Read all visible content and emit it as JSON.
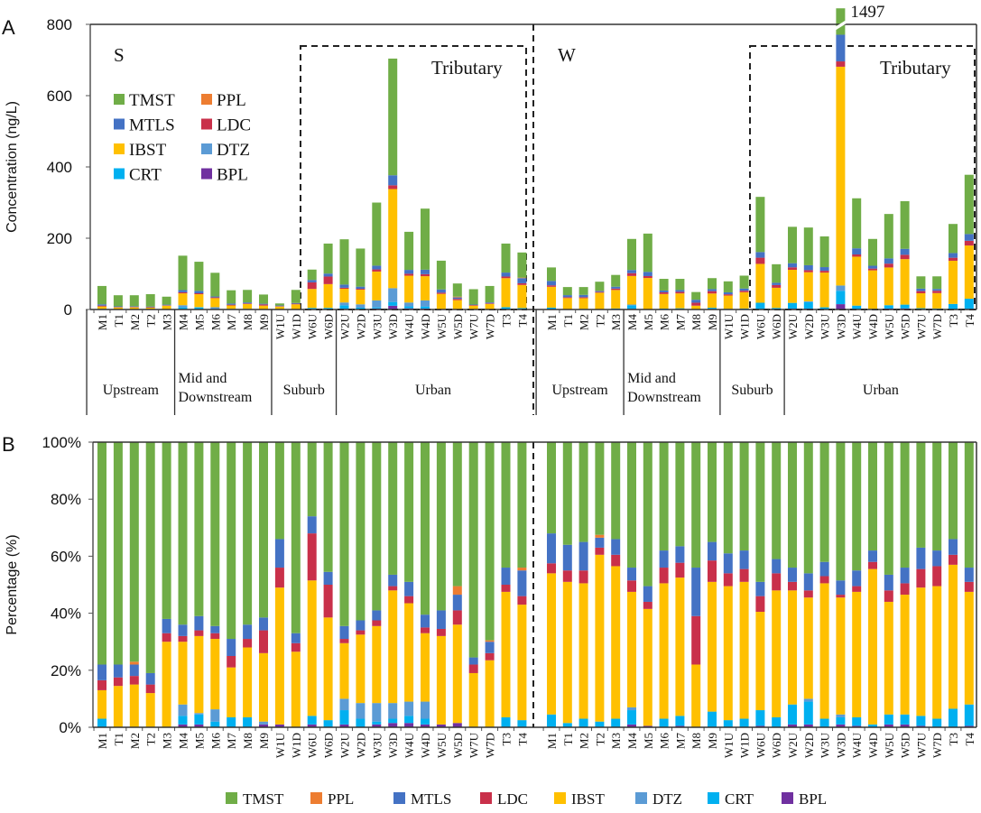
{
  "chart_data": [
    {
      "panel": "A",
      "type": "bar",
      "stacked": true,
      "panel_label": "A",
      "ylabel": "Concentration (ng/L)",
      "ylim": [
        0,
        800
      ],
      "yticks": [
        "0",
        "200",
        "400",
        "600",
        "800"
      ],
      "tributary_label": "Tributary",
      "broken_bar_label": "1497",
      "groups": [
        {
          "name": "S",
          "totals": [
            66,
            40,
            40,
            43,
            36,
            151,
            134,
            103,
            54,
            55,
            42,
            17,
            55,
            112,
            185,
            197,
            171,
            300,
            704,
            218,
            283,
            137,
            73,
            57,
            66,
            185,
            160
          ]
        },
        {
          "name": "W",
          "totals": [
            118,
            63,
            63,
            78,
            97,
            198,
            213,
            86,
            86,
            49,
            88,
            79,
            95,
            316,
            127,
            232,
            230,
            205,
            1497,
            312,
            198,
            268,
            304,
            93,
            93,
            240,
            378
          ]
        }
      ],
      "regions": [
        {
          "label": [
            "Upstream"
          ],
          "count": 5
        },
        {
          "label": [
            "Mid and",
            "Downstream"
          ],
          "count": 6
        },
        {
          "label": [
            "Suburb"
          ],
          "count": 4
        },
        {
          "label": [
            "Urban"
          ],
          "count": 12
        }
      ],
      "legend_placement": "top-left"
    },
    {
      "panel": "B",
      "type": "bar",
      "stacked": true,
      "panel_label": "B",
      "ylabel": "Percentage (%)",
      "ylim": [
        0,
        100
      ],
      "yticks": [
        "0%",
        "20%",
        "40%",
        "60%",
        "80%",
        "100%"
      ],
      "percent_order": [
        "BPL",
        "CRT",
        "DTZ",
        "IBST",
        "LDC",
        "MTLS",
        "PPL",
        "TMST"
      ],
      "groups": [
        {
          "name": "S",
          "percent": [
            [
              0,
              3,
              0,
              10,
              3.5,
              5.5,
              0,
              78
            ],
            [
              0,
              0,
              0,
              14.5,
              3,
              4.5,
              0,
              78
            ],
            [
              0,
              0,
              0,
              15,
              3,
              4,
              1,
              77
            ],
            [
              0,
              0,
              0,
              12,
              3,
              4,
              0,
              81
            ],
            [
              0,
              0,
              0,
              30,
              3,
              5,
              0,
              62
            ],
            [
              1,
              3,
              4,
              22,
              2,
              4,
              0,
              64
            ],
            [
              1,
              3.5,
              0.5,
              27,
              2,
              5,
              0,
              61
            ],
            [
              0,
              2,
              4.3,
              24.7,
              2,
              2.5,
              0,
              64.5
            ],
            [
              0,
              3.5,
              0,
              17.5,
              4,
              6,
              0,
              69
            ],
            [
              0,
              3.5,
              0,
              24.5,
              3,
              5,
              0,
              64
            ],
            [
              1,
              0,
              1,
              24,
              8,
              4.5,
              0,
              61.5
            ],
            [
              1,
              0,
              0,
              48,
              7,
              10,
              0,
              34
            ],
            [
              0,
              0,
              0,
              26.5,
              3,
              3.5,
              0,
              67
            ],
            [
              1,
              3,
              0,
              47.5,
              16.5,
              6,
              0,
              26
            ],
            [
              0,
              2.5,
              0,
              36,
              11.5,
              4.5,
              0,
              45.5
            ],
            [
              1,
              5,
              4,
              19.5,
              1.5,
              4.5,
              0,
              64.5
            ],
            [
              0,
              3,
              5.5,
              24,
              1.5,
              3.5,
              0,
              62.5
            ],
            [
              1,
              1,
              6.5,
              27,
              2,
              3.5,
              0,
              59
            ],
            [
              1.5,
              1.5,
              5.5,
              39.5,
              1.5,
              4,
              0,
              46.5
            ],
            [
              1.5,
              2.5,
              5,
              34.5,
              2.5,
              5,
              0,
              49
            ],
            [
              1,
              2,
              6,
              24,
              2,
              4.5,
              0,
              60.5
            ],
            [
              1,
              0,
              0,
              31,
              2.5,
              6.5,
              0,
              59
            ],
            [
              1.5,
              0,
              0,
              34.5,
              5,
              5.5,
              3,
              50.5
            ],
            [
              0,
              0,
              0,
              19,
              3,
              2.5,
              0,
              75.5
            ],
            [
              0,
              0,
              0,
              23.5,
              2.5,
              4,
              0.5,
              69.5
            ],
            [
              0,
              3.5,
              0,
              44,
              2.5,
              6,
              0,
              44
            ],
            [
              0,
              2.5,
              0,
              40.5,
              3,
              9,
              1,
              44
            ]
          ]
        },
        {
          "name": "W",
          "percent": [
            [
              0,
              4.5,
              0,
              49.5,
              3.5,
              10.5,
              0,
              32
            ],
            [
              0,
              1.5,
              0,
              49.5,
              4,
              9,
              0,
              36
            ],
            [
              0,
              3,
              0,
              47.5,
              4.5,
              10,
              0,
              35
            ],
            [
              0,
              2,
              0,
              58.5,
              2.5,
              3.5,
              1,
              32.5
            ],
            [
              0,
              3,
              0,
              53.5,
              4,
              5.5,
              0,
              34
            ],
            [
              1,
              5,
              1,
              40.5,
              4,
              4.5,
              0,
              44
            ],
            [
              0.5,
              0,
              0,
              41,
              2.5,
              5.5,
              0,
              50.5
            ],
            [
              0,
              3,
              0,
              47.5,
              5.5,
              6,
              0,
              38
            ],
            [
              0.5,
              3.5,
              0,
              48.5,
              5.2,
              5.8,
              0,
              36.5
            ],
            [
              0,
              0,
              0,
              22,
              17,
              17,
              0,
              44
            ],
            [
              0,
              5.5,
              0,
              45.5,
              7.5,
              6.5,
              0,
              35
            ],
            [
              0,
              2.5,
              0,
              47,
              4.5,
              7,
              0,
              39
            ],
            [
              0,
              3,
              0,
              48,
              4.5,
              6.5,
              0,
              38
            ],
            [
              0.5,
              5.5,
              0,
              34.5,
              5.5,
              5,
              0,
              49
            ],
            [
              0,
              3.5,
              0,
              44.5,
              6,
              5,
              0,
              41
            ],
            [
              1,
              7,
              0,
              40,
              3,
              5,
              0,
              44
            ],
            [
              1,
              8,
              1,
              35.5,
              2.5,
              6,
              0,
              46
            ],
            [
              0,
              3,
              0,
              47.5,
              2.5,
              5,
              0,
              42
            ],
            [
              1,
              2.5,
              1,
              41,
              1,
              5,
              0,
              48.5
            ],
            [
              0.5,
              3,
              0,
              44,
              2,
              5.5,
              0,
              45
            ],
            [
              0,
              1,
              0,
              54.5,
              2.5,
              4,
              0,
              38
            ],
            [
              1,
              3.5,
              0,
              39.5,
              4,
              5.5,
              0,
              46.5
            ],
            [
              1,
              3.5,
              0,
              42,
              4,
              5.5,
              0,
              44
            ],
            [
              0.5,
              3.5,
              0,
              45,
              6.5,
              7.5,
              0,
              37
            ],
            [
              0,
              3,
              0,
              46.5,
              7,
              5.5,
              0,
              38
            ],
            [
              0,
              6.5,
              0,
              50.5,
              3.5,
              5.5,
              0,
              34
            ],
            [
              0.5,
              7.5,
              0,
              39.5,
              3.5,
              5,
              0,
              44
            ]
          ]
        }
      ],
      "legend_placement": "bottom"
    }
  ],
  "categories": [
    "M1",
    "T1",
    "M2",
    "T2",
    "M3",
    "M4",
    "M5",
    "M6",
    "M7",
    "M8",
    "M9",
    "W1U",
    "W1D",
    "W6U",
    "W6D",
    "W2U",
    "W2D",
    "W3U",
    "W3D",
    "W4U",
    "W4D",
    "W5U",
    "W5D",
    "W7U",
    "W7D",
    "T3",
    "T4"
  ],
  "series": [
    {
      "name": "BPL",
      "color": "#7030A0"
    },
    {
      "name": "CRT",
      "color": "#00B0F0"
    },
    {
      "name": "DTZ",
      "color": "#5B9BD5"
    },
    {
      "name": "IBST",
      "color": "#FFC000"
    },
    {
      "name": "LDC",
      "color": "#C9304A"
    },
    {
      "name": "MTLS",
      "color": "#4472C4"
    },
    {
      "name": "PPL",
      "color": "#ED7D31"
    },
    {
      "name": "TMST",
      "color": "#70AD47"
    }
  ],
  "legend_top": [
    [
      "TMST",
      "PPL"
    ],
    [
      "MTLS",
      "LDC"
    ],
    [
      "IBST",
      "DTZ"
    ],
    [
      "CRT",
      "BPL"
    ]
  ],
  "legend_bottom": [
    "TMST",
    "PPL",
    "MTLS",
    "LDC",
    "IBST",
    "DTZ",
    "CRT",
    "BPL"
  ]
}
